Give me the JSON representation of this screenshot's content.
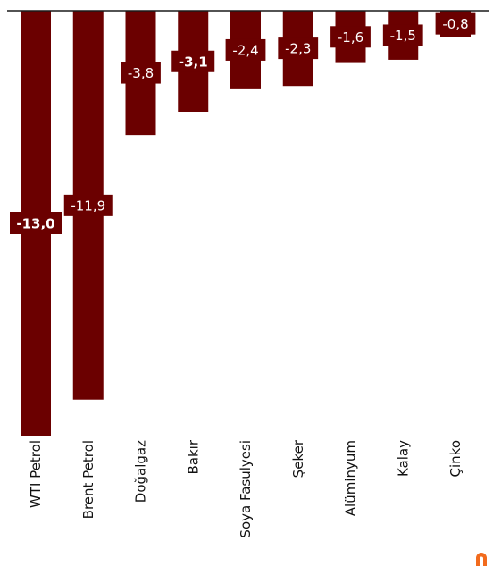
{
  "chart_data": {
    "type": "bar",
    "categories": [
      "WTI Petrol",
      "Brent Petrol",
      "Doğalgaz",
      "Bakır",
      "Soya Fasulyesi",
      "Şeker",
      "Alüminyum",
      "Kalay",
      "Çinko"
    ],
    "values": [
      -13.0,
      -11.9,
      -3.8,
      -3.1,
      -2.4,
      -2.3,
      -1.6,
      -1.5,
      -0.8
    ],
    "data_labels": [
      "-13,0",
      "-11,9",
      "-3,8",
      "-3,1",
      "-2,4",
      "-2,3",
      "-1,6",
      "-1,5",
      "-0,8"
    ],
    "bold_labels": [
      true,
      false,
      false,
      true,
      false,
      false,
      false,
      false,
      false
    ],
    "title": "",
    "xlabel": "",
    "ylabel": "",
    "ylim": [
      -13.0,
      0
    ],
    "grid": false,
    "legend": "none"
  },
  "colors": {
    "bar": "#6b0000",
    "label_bg": "#6b0000",
    "label_text": "#ffffff",
    "axis": "#1a1a1a",
    "tick_text": "#111111",
    "logo": "#f26b1d"
  },
  "logo_icon": "brand-logo-icon"
}
